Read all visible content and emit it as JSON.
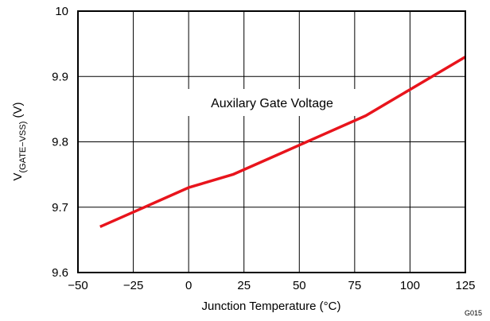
{
  "chart_data": {
    "type": "line",
    "xlabel": "Junction Temperature (°C)",
    "ylabel": {
      "main": "V",
      "subscript": "(GATE−VSS)",
      "unit": " (V)"
    },
    "xlim": [
      -50,
      125
    ],
    "ylim": [
      9.6,
      10.0
    ],
    "xticks": [
      -50,
      -25,
      0,
      25,
      50,
      75,
      100,
      125
    ],
    "xtick_labels": [
      "−50",
      "−25",
      "0",
      "25",
      "50",
      "75",
      "100",
      "125"
    ],
    "yticks": [
      9.6,
      9.7,
      9.8,
      9.9,
      10.0
    ],
    "ytick_labels": [
      "9.6",
      "9.7",
      "9.8",
      "9.9",
      "10"
    ],
    "grid": true,
    "annotation": "Auxilary Gate Voltage",
    "figure_id": "G015",
    "series": [
      {
        "color": "#e8141c",
        "x": [
          -40,
          -20,
          0,
          20,
          40,
          60,
          80,
          100,
          125
        ],
        "y": [
          9.67,
          9.7,
          9.73,
          9.75,
          9.78,
          9.81,
          9.84,
          9.88,
          9.93
        ]
      }
    ]
  }
}
